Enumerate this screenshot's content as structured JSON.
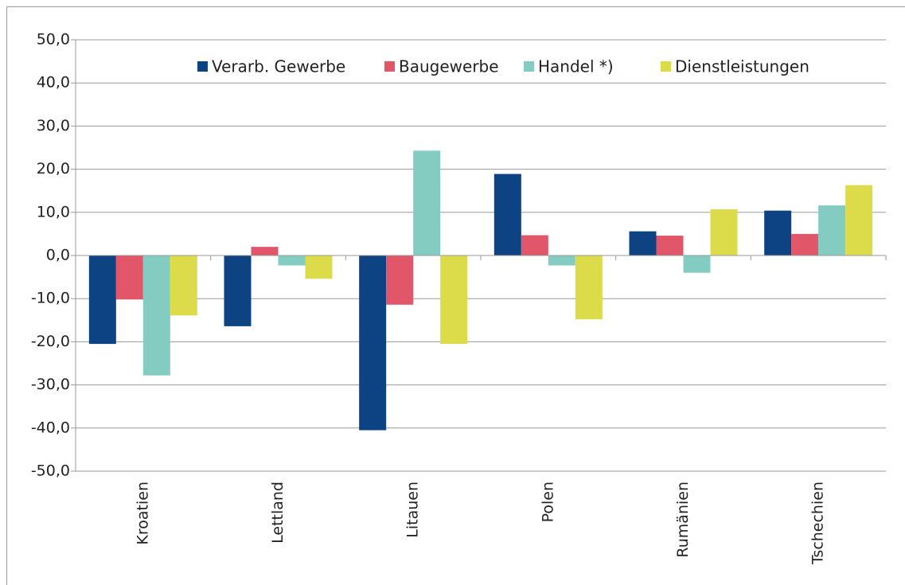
{
  "chart_data": {
    "type": "bar",
    "categories": [
      "Kroatien",
      "Lettland",
      "Litauen",
      "Polen",
      "Rumänien",
      "Tschechien"
    ],
    "series": [
      {
        "name": "Verarb. Gewerbe",
        "color": "#0d4382",
        "values": [
          -20.5,
          -16.4,
          -40.5,
          18.9,
          5.6,
          10.4
        ]
      },
      {
        "name": "Baugewerbe",
        "color": "#e2566a",
        "values": [
          -10.2,
          2.0,
          -11.4,
          4.7,
          4.6,
          5.0
        ]
      },
      {
        "name": "Handel *)",
        "color": "#84ccc1",
        "values": [
          -27.8,
          -2.3,
          24.3,
          -2.3,
          -4.0,
          11.6
        ]
      },
      {
        "name": "Dienstleistungen",
        "color": "#dcdc4a",
        "values": [
          -13.9,
          -5.4,
          -20.5,
          -14.8,
          10.7,
          16.3
        ]
      }
    ],
    "ylim": [
      -50,
      50
    ],
    "yticks": [
      {
        "value": -50,
        "label": "-50,0"
      },
      {
        "value": -40,
        "label": "-40,0"
      },
      {
        "value": -30,
        "label": "-30,0"
      },
      {
        "value": -20,
        "label": "-20,0"
      },
      {
        "value": -10,
        "label": "-10,0"
      },
      {
        "value": 0,
        "label": "0,0"
      },
      {
        "value": 10,
        "label": "10,0"
      },
      {
        "value": 20,
        "label": "20,0"
      },
      {
        "value": 30,
        "label": "30,0"
      },
      {
        "value": 40,
        "label": "40,0"
      },
      {
        "value": 50,
        "label": "50,0"
      }
    ],
    "grid": true,
    "legend": "top"
  }
}
